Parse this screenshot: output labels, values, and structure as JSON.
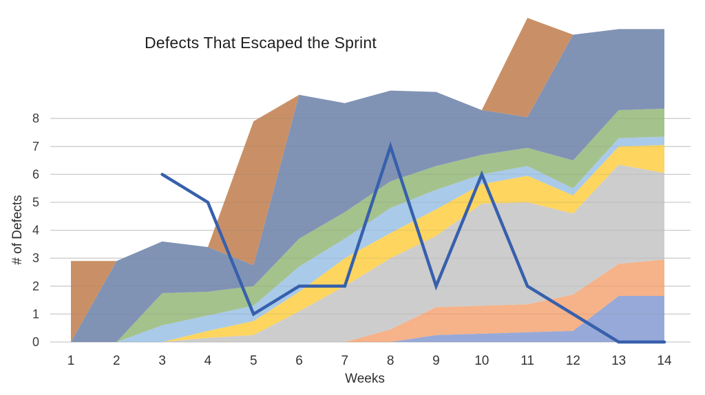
{
  "chart_data": {
    "type": "area",
    "stacked": true,
    "title": "Defects That Escaped the Sprint",
    "xlabel": "Weeks",
    "ylabel": "# of Defects",
    "x": [
      1,
      2,
      3,
      4,
      5,
      6,
      7,
      8,
      9,
      10,
      11,
      12,
      13,
      14
    ],
    "x_tick_labels": [
      "1",
      "2",
      "3",
      "4",
      "5",
      "6",
      "7",
      "8",
      "9",
      "10",
      "11",
      "12",
      "13",
      "14"
    ],
    "y_ticks": [
      0,
      1,
      2,
      3,
      4,
      5,
      6,
      7,
      8
    ],
    "ylim": [
      0,
      8
    ],
    "grid": "horizontal",
    "legend": "none",
    "note": "Stacked area bands (bottom to top) with a bold blue line overlay; stack total exceeds the labeled 0-8 gridline range at several weeks.",
    "series": [
      {
        "name": "band-periwinkle",
        "color": "#97A9D8",
        "values": [
          0,
          0,
          0,
          0,
          0,
          0,
          0,
          0,
          0.25,
          0.3,
          0.35,
          0.4,
          1.65,
          1.65
        ]
      },
      {
        "name": "band-salmon",
        "color": "#F6B288",
        "values": [
          0,
          0,
          0,
          0,
          0,
          0,
          0,
          0.45,
          1.0,
          1.0,
          1.0,
          1.3,
          1.15,
          1.3
        ]
      },
      {
        "name": "band-gray",
        "color": "#CDCDCD",
        "values": [
          0,
          0,
          0,
          0.15,
          0.25,
          1.1,
          2.0,
          2.55,
          2.55,
          3.65,
          3.65,
          2.9,
          3.55,
          3.1
        ]
      },
      {
        "name": "band-yellow",
        "color": "#FDD55F",
        "values": [
          0,
          0,
          0,
          0.25,
          0.5,
          0.7,
          1.0,
          0.9,
          0.95,
          0.7,
          0.95,
          0.65,
          0.65,
          1.0
        ]
      },
      {
        "name": "band-light-blue",
        "color": "#A9CAE9",
        "values": [
          0,
          0,
          0.6,
          0.55,
          0.55,
          0.9,
          0.7,
          0.9,
          0.7,
          0.35,
          0.35,
          0.25,
          0.3,
          0.3
        ]
      },
      {
        "name": "band-green",
        "color": "#A4C28C",
        "values": [
          0,
          0,
          1.15,
          0.85,
          0.7,
          1.0,
          0.95,
          0.95,
          0.85,
          0.7,
          0.65,
          1.0,
          1.0,
          1.0
        ]
      },
      {
        "name": "band-slate-blue",
        "color": "#8093B5",
        "values": [
          0,
          2.9,
          1.85,
          1.6,
          0.75,
          5.15,
          3.9,
          3.25,
          2.65,
          1.6,
          1.1,
          4.5,
          2.9,
          2.85
        ]
      },
      {
        "name": "band-tan",
        "color": "#C99067",
        "values": [
          2.9,
          0,
          0,
          0,
          5.15,
          0,
          0,
          0,
          0,
          0,
          3.55,
          0,
          0,
          0
        ]
      }
    ],
    "line_series": {
      "name": "escaped-defects-line",
      "color": "#3760AC",
      "stroke_width": 4.5,
      "values": [
        null,
        null,
        6,
        5,
        1,
        2,
        2,
        7,
        2,
        6,
        2,
        1,
        0,
        0
      ]
    }
  },
  "style_colors": {
    "background": "#FFFFFF",
    "gridline": "#D9D9D9",
    "gridline_overlay": "rgba(110,110,110,0.14)",
    "x_tick_text": "#333333",
    "y_tick_text": "#3A3A3A",
    "title_text": "#1F1F1F"
  }
}
